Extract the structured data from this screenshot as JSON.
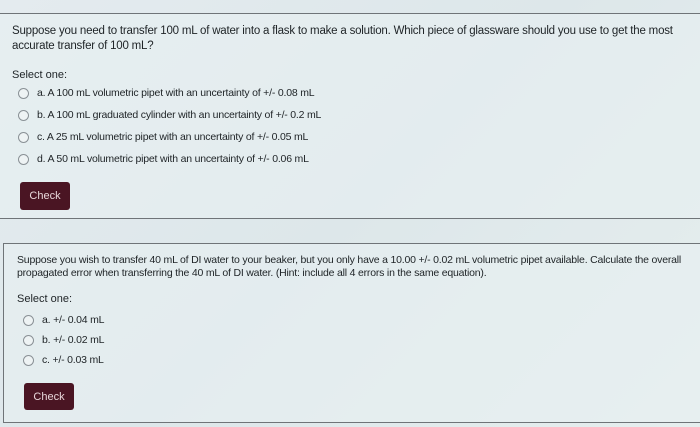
{
  "questions": [
    {
      "text": "Suppose you need to transfer 100 mL of water into a flask to make a solution.  Which piece of glassware should you use to get the most accurate transfer of 100 mL?",
      "select_label": "Select one:",
      "options": [
        "a. A 100 mL volumetric pipet with an uncertainty of +/- 0.08 mL",
        "b. A 100 mL graduated cylinder with an uncertainty of +/- 0.2 mL",
        "c. A 25 mL volumetric pipet with an uncertainty of +/- 0.05 mL",
        "d. A 50 mL volumetric pipet with an uncertainty of +/- 0.06 mL"
      ],
      "check_label": "Check"
    },
    {
      "text": "Suppose you wish to transfer 40 mL of DI water to your beaker, but you only have a 10.00 +/- 0.02  mL volumetric pipet available. Calculate the overall propagated error when transferring the 40 mL of DI water. (Hint: include all 4 errors in the same equation).",
      "select_label": "Select one:",
      "options": [
        "a. +/- 0.04 mL",
        "b. +/- 0.02 mL",
        "c. +/- 0.03 mL"
      ],
      "check_label": "Check"
    }
  ],
  "colors": {
    "button": "#4a1523"
  }
}
